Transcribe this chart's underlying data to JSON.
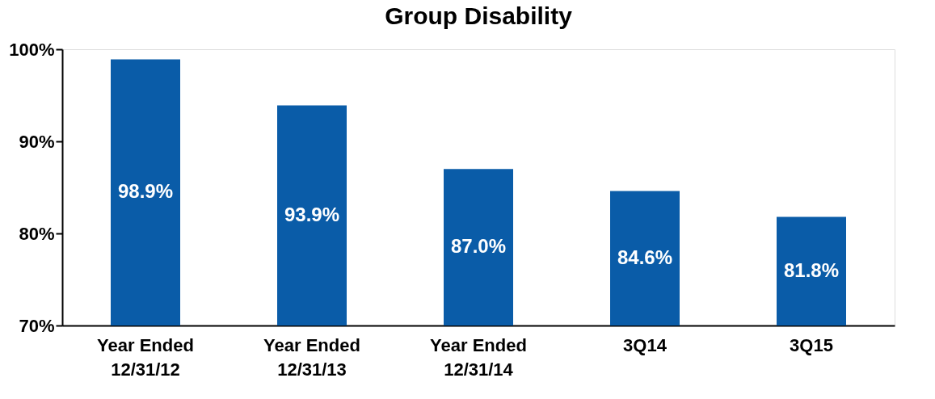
{
  "chart_data": {
    "type": "bar",
    "title": "Group Disability",
    "categories": [
      "Year Ended\n12/31/12",
      "Year Ended\n12/31/13",
      "Year Ended\n12/31/14",
      "3Q14",
      "3Q15"
    ],
    "values": [
      98.9,
      93.9,
      87.0,
      84.6,
      81.8
    ],
    "color": "#0a5ca8",
    "value_labels": [
      "98.9%",
      "93.9%",
      "87.0%",
      "84.6%",
      "81.8%"
    ],
    "ylim": [
      70,
      100
    ],
    "yticks": [
      {
        "value": 70,
        "label": "70%"
      },
      {
        "value": 80,
        "label": "80%"
      },
      {
        "value": 90,
        "label": "90%"
      },
      {
        "value": 100,
        "label": "100%"
      }
    ],
    "grid": false
  }
}
